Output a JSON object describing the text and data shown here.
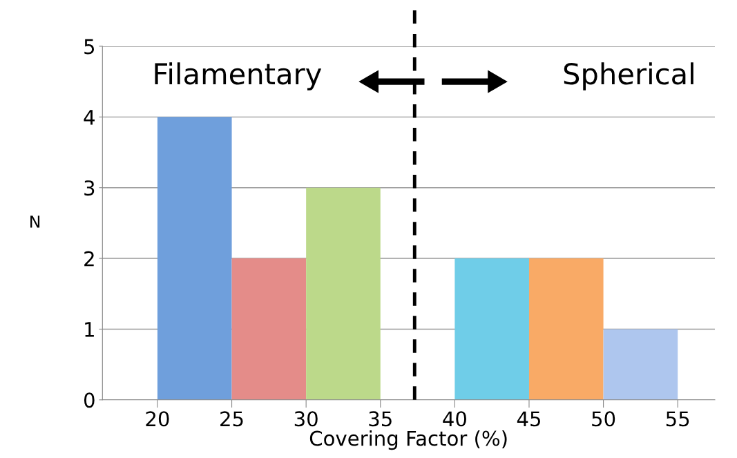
{
  "chart_data": {
    "type": "histogram",
    "xlabel": "Covering Factor (%)",
    "ylabel": "N",
    "bins": [
      20,
      25,
      30,
      35,
      40,
      45,
      50,
      55
    ],
    "values": [
      4,
      2,
      3,
      0,
      2,
      2,
      1
    ],
    "colors": [
      "#6f9fdc",
      "#e48c89",
      "#bcd98a",
      "#ffffff",
      "#6fcde8",
      "#f9aa66",
      "#aec6ee"
    ],
    "xlim": [
      16.3,
      57.5
    ],
    "xticks": [
      20,
      25,
      30,
      35,
      40,
      45,
      50,
      55
    ],
    "ylim": [
      0,
      5
    ],
    "yticks": [
      0,
      1,
      2,
      3,
      4,
      5
    ],
    "grid": "y",
    "ref_lines": [
      {
        "axis": "x",
        "value": 37.3,
        "color": "#000000",
        "line_style": "dashed"
      }
    ],
    "annotations": [
      "Filamentary",
      "Spherical"
    ]
  }
}
